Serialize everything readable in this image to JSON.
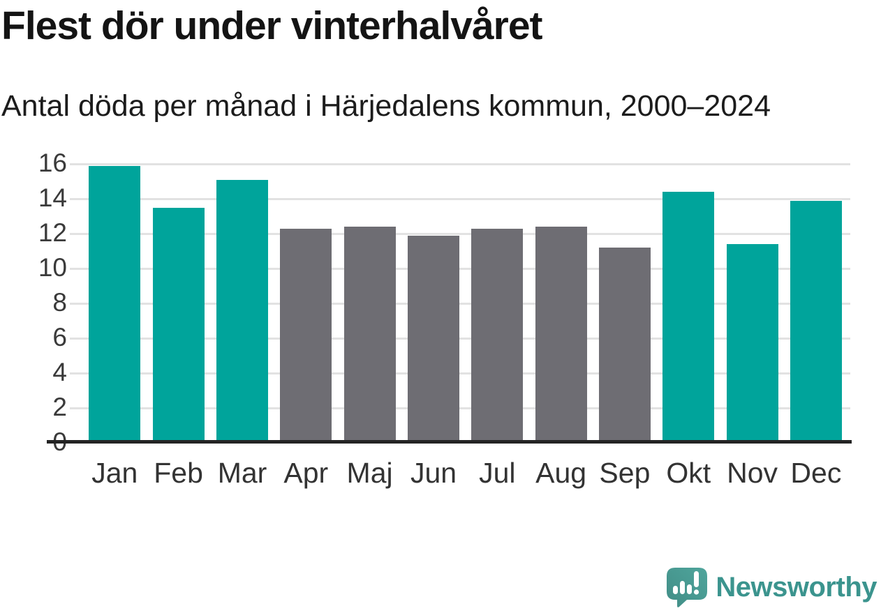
{
  "chart_data": {
    "type": "bar",
    "title": "Flest dör under vinterhalvåret",
    "subtitle": "Antal döda per månad i Härjedalens kommun, 2000–2024",
    "categories": [
      "Jan",
      "Feb",
      "Mar",
      "Apr",
      "Maj",
      "Jun",
      "Jul",
      "Aug",
      "Sep",
      "Okt",
      "Nov",
      "Dec"
    ],
    "values": [
      15.9,
      13.5,
      15.1,
      12.3,
      12.4,
      11.9,
      12.3,
      12.4,
      11.2,
      14.4,
      11.4,
      13.9
    ],
    "groups": [
      "winter",
      "winter",
      "winter",
      "summer",
      "summer",
      "summer",
      "summer",
      "summer",
      "summer",
      "winter",
      "winter",
      "winter"
    ],
    "palette": {
      "winter": "#00a49b",
      "summer": "#6e6d73"
    },
    "xlabel": "",
    "ylabel": "",
    "ylim": [
      0,
      16
    ],
    "yticks": [
      0,
      2,
      4,
      6,
      8,
      10,
      12,
      14,
      16
    ],
    "grid": "horizontal",
    "legend": "none"
  },
  "branding": {
    "wordmark": "Newsworthy",
    "logo_icon": "newsworthy-speech-bubble-bar-chart-icon",
    "color": "#3b948e",
    "bubble_color": "#4a9d95"
  }
}
